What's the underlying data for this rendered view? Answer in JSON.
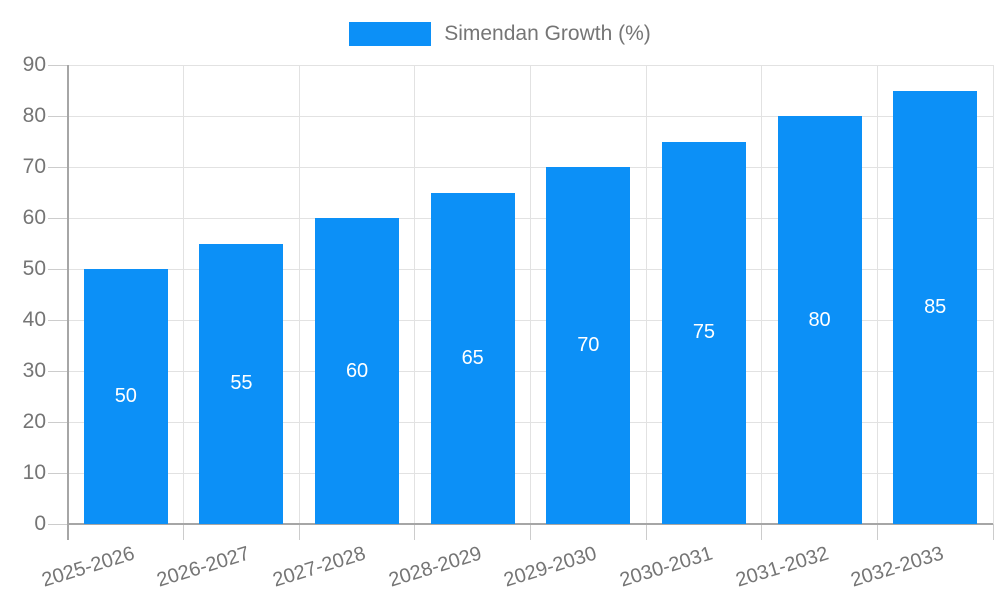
{
  "legend": {
    "label": "Simendan Growth (%)"
  },
  "chart_data": {
    "type": "bar",
    "title": "",
    "xlabel": "",
    "ylabel": "",
    "categories": [
      "2025-2026",
      "2026-2027",
      "2027-2028",
      "2028-2029",
      "2029-2030",
      "2030-2031",
      "2031-2032",
      "2032-2033"
    ],
    "series": [
      {
        "name": "Simendan Growth (%)",
        "values": [
          50,
          55,
          60,
          65,
          70,
          75,
          80,
          85
        ]
      }
    ],
    "value_labels_shown": true,
    "ylim": [
      0,
      90
    ],
    "ytick_step": 10,
    "yticks": [
      0,
      10,
      20,
      30,
      40,
      50,
      60,
      70,
      80,
      90
    ],
    "grid": true,
    "legend_position": "top-center",
    "x_label_rotation_deg": -17,
    "colors": {
      "bar": "#0c90f7",
      "value_label": "#ffffff",
      "axis_text": "#757575",
      "grid_line": "#e2e2e2",
      "tick_line": "#cccccc",
      "axis_line": "#a6a6a6",
      "background": "#ffffff"
    }
  }
}
